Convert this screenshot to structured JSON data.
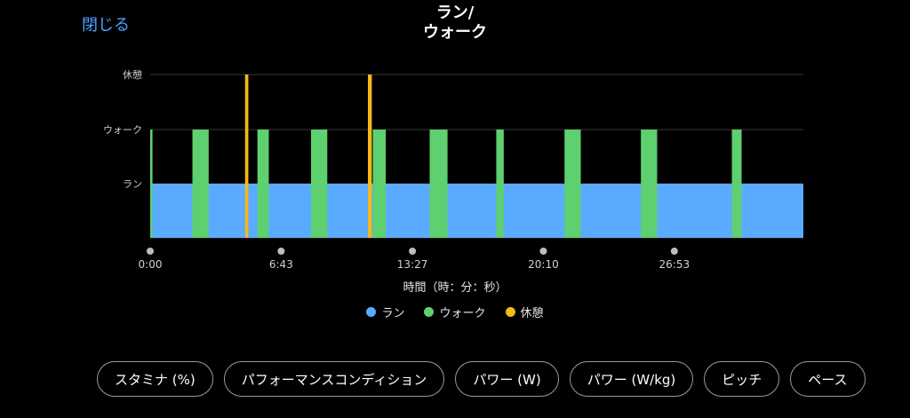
{
  "header": {
    "close_label": "閉じる",
    "title_line1": "ラン/",
    "title_line2": "ウォーク"
  },
  "chart_data": {
    "type": "area",
    "title": "ラン/ウォーク",
    "xlabel": "時間（時：分：秒）",
    "ylabel": "",
    "categories": [
      "ラン",
      "ウォーク",
      "休憩"
    ],
    "x_ticks": [
      "0:00",
      "6:43",
      "13:27",
      "20:10",
      "26:53"
    ],
    "xlim_seconds": [
      0,
      2010
    ],
    "colors": {
      "ラン": "#5aabff",
      "ウォーク": "#5fd06f",
      "休憩": "#f6b81a"
    },
    "series": [
      {
        "name": "ラン",
        "segments": [
          [
            0,
            2010
          ]
        ]
      },
      {
        "name": "ウォーク",
        "segments": [
          [
            0,
            7
          ],
          [
            130,
            180
          ],
          [
            330,
            365
          ],
          [
            495,
            545
          ],
          [
            685,
            725
          ],
          [
            860,
            915
          ],
          [
            1065,
            1088
          ],
          [
            1275,
            1325
          ],
          [
            1510,
            1560
          ],
          [
            1790,
            1820
          ]
        ]
      },
      {
        "name": "休憩",
        "segments": [
          [
            292,
            302
          ],
          [
            670,
            682
          ]
        ]
      }
    ],
    "legend": [
      "ラン",
      "ウォーク",
      "休憩"
    ],
    "legend_position": "bottom",
    "grid": true
  },
  "chips": [
    "スタミナ (%)",
    "パフォーマンスコンディション",
    "パワー (W)",
    "パワー (W/kg)",
    "ピッチ",
    "ペース"
  ]
}
